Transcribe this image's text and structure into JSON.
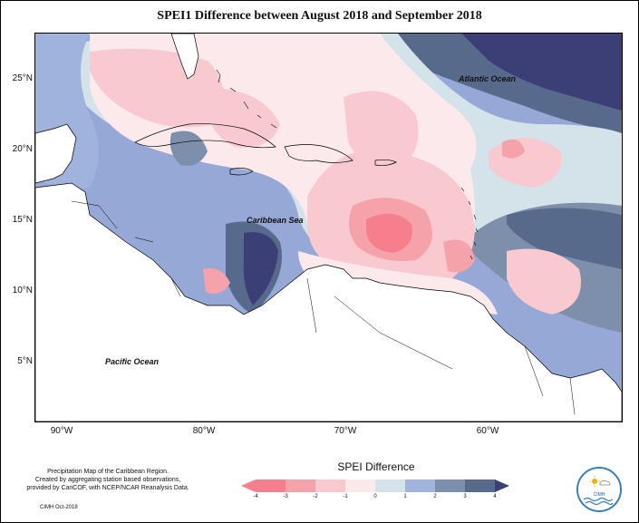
{
  "title": "SPEI1 Difference between August 2018 and September 2018",
  "y_axis_labels": [
    "25°N",
    "20°N",
    "15°N",
    "10°N",
    "5°N"
  ],
  "x_axis_labels": [
    "90°W",
    "80°W",
    "70°W",
    "60°W"
  ],
  "ocean_labels": {
    "atlantic": "Atlantic Ocean",
    "caribbean": "Caribbean Sea",
    "pacific": "Pacific Ocean"
  },
  "legend": {
    "title": "SPEI Difference",
    "ticks": [
      "-4",
      "-3",
      "-2",
      "-1",
      "0",
      "1",
      "2",
      "3",
      "4"
    ],
    "colors": [
      "#f57f8c",
      "#f6a2ab",
      "#f8c9cf",
      "#fce9eb",
      "#d4e2ea",
      "#9fb3dd",
      "#7e8fab",
      "#586a8c",
      "#3c3e76"
    ]
  },
  "footer": {
    "line1": "Precipitation Map of the Caribbean Region.",
    "line2": "Created by aggregating station based observations,",
    "line3": "provided by CariCOF, with NCEP/NCAR Reanalysis Data.",
    "credit": "CIMH Oct-2018"
  },
  "logo_text": "CIMH"
}
